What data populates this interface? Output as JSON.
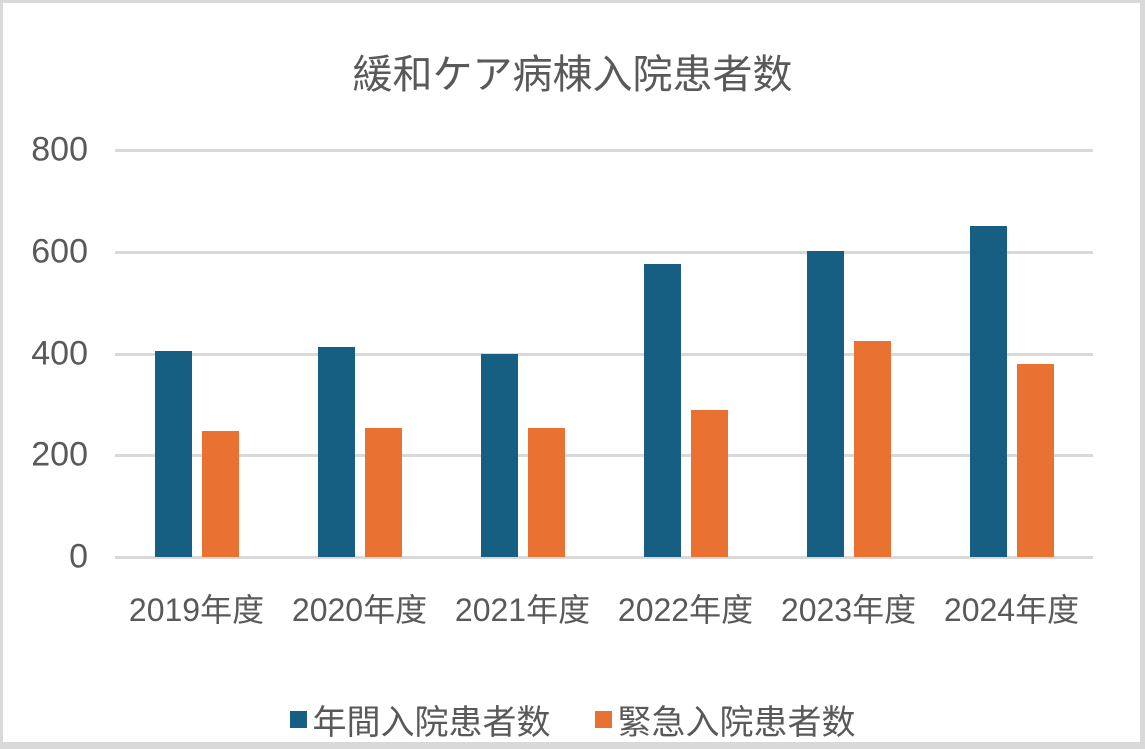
{
  "chart_data": {
    "type": "bar",
    "title": "緩和ケア病棟入院患者数",
    "categories": [
      "2019年度",
      "2020年度",
      "2021年度",
      "2022年度",
      "2023年度",
      "2024年度"
    ],
    "series": [
      {
        "name": "年間入院患者数",
        "color": "#175f82",
        "values": [
          405,
          413,
          399,
          576,
          601,
          650
        ]
      },
      {
        "name": "緊急入院患者数",
        "color": "#e97132",
        "values": [
          248,
          253,
          253,
          289,
          424,
          379
        ]
      }
    ],
    "xlabel": "",
    "ylabel": "",
    "ylim": [
      0,
      800
    ],
    "yticks": [
      0,
      200,
      400,
      600,
      800
    ],
    "grid": true,
    "legend_position": "bottom"
  },
  "yticks_labels": [
    "800",
    "600",
    "400",
    "200",
    "0"
  ]
}
